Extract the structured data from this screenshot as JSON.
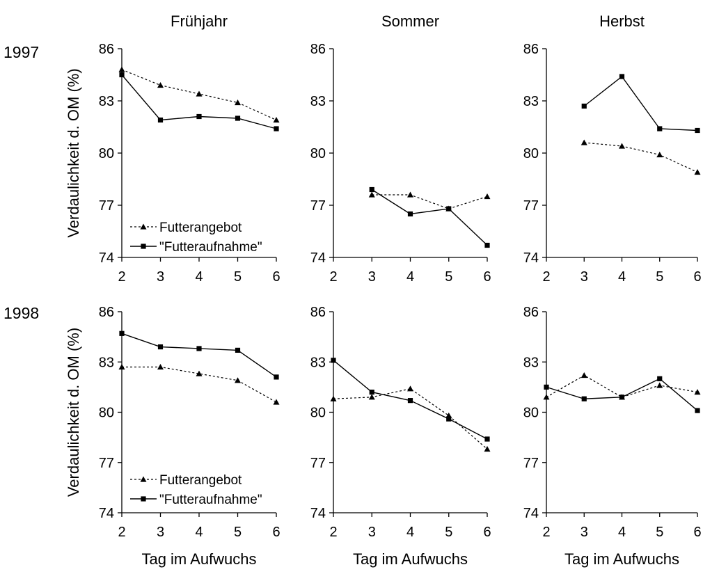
{
  "chart_data": {
    "type": "line",
    "column_titles": [
      "Frühjahr",
      "Sommer",
      "Herbst"
    ],
    "row_labels": [
      "1997",
      "1998"
    ],
    "ylabel": "Verdaulichkeit d. OM (%)",
    "xlabel": "Tag im Aufwuchs",
    "ylim": [
      74,
      86
    ],
    "y_ticks": [
      74,
      77,
      80,
      83,
      86
    ],
    "x_ticks": [
      2,
      3,
      4,
      5,
      6
    ],
    "grid": false,
    "legend": {
      "placement": "lower-left",
      "panels": [
        "1997-Frühjahr",
        "1998-Frühjahr"
      ],
      "entries": [
        "Futterangebot",
        "\"Futteraufnahme\""
      ]
    },
    "series_names": [
      "Futterangebot",
      "\"Futteraufnahme\""
    ],
    "panels": [
      {
        "row": "1997",
        "season": "Frühjahr",
        "series": [
          {
            "name": "Futterangebot",
            "style": "dashed-triangle",
            "x": [
              2,
              3,
              4,
              5,
              6
            ],
            "y": [
              84.8,
              83.9,
              83.4,
              82.9,
              81.9
            ]
          },
          {
            "name": "\"Futteraufnahme\"",
            "style": "solid-square",
            "x": [
              2,
              3,
              4,
              5,
              6
            ],
            "y": [
              84.5,
              81.9,
              82.1,
              82.0,
              81.4
            ]
          }
        ]
      },
      {
        "row": "1997",
        "season": "Sommer",
        "series": [
          {
            "name": "Futterangebot",
            "style": "dashed-triangle",
            "x": [
              3,
              4,
              5,
              6
            ],
            "y": [
              77.6,
              77.6,
              76.8,
              77.5
            ]
          },
          {
            "name": "\"Futteraufnahme\"",
            "style": "solid-square",
            "x": [
              3,
              4,
              5,
              6
            ],
            "y": [
              77.9,
              76.5,
              76.8,
              74.7
            ]
          }
        ]
      },
      {
        "row": "1997",
        "season": "Herbst",
        "series": [
          {
            "name": "Futterangebot",
            "style": "dashed-triangle",
            "x": [
              3,
              4,
              5,
              6
            ],
            "y": [
              80.6,
              80.4,
              79.9,
              78.9
            ]
          },
          {
            "name": "\"Futteraufnahme\"",
            "style": "solid-square",
            "x": [
              3,
              4,
              5,
              6
            ],
            "y": [
              82.7,
              84.4,
              81.4,
              81.3
            ]
          }
        ]
      },
      {
        "row": "1998",
        "season": "Frühjahr",
        "series": [
          {
            "name": "Futterangebot",
            "style": "dashed-triangle",
            "x": [
              2,
              3,
              4,
              5,
              6
            ],
            "y": [
              82.7,
              82.7,
              82.3,
              81.9,
              80.6
            ]
          },
          {
            "name": "\"Futteraufnahme\"",
            "style": "solid-square",
            "x": [
              2,
              3,
              4,
              5,
              6
            ],
            "y": [
              84.7,
              83.9,
              83.8,
              83.7,
              82.1
            ]
          }
        ]
      },
      {
        "row": "1998",
        "season": "Sommer",
        "series": [
          {
            "name": "Futterangebot",
            "style": "dashed-triangle",
            "x": [
              2,
              3,
              4,
              5,
              6
            ],
            "y": [
              80.8,
              80.9,
              81.4,
              79.8,
              77.8
            ]
          },
          {
            "name": "\"Futteraufnahme\"",
            "style": "solid-square",
            "x": [
              2,
              3,
              4,
              5,
              6
            ],
            "y": [
              83.1,
              81.2,
              80.7,
              79.6,
              78.4
            ]
          }
        ]
      },
      {
        "row": "1998",
        "season": "Herbst",
        "series": [
          {
            "name": "Futterangebot",
            "style": "dashed-triangle",
            "x": [
              2,
              3,
              4,
              5,
              6
            ],
            "y": [
              80.9,
              82.2,
              80.9,
              81.6,
              81.2
            ]
          },
          {
            "name": "\"Futteraufnahme\"",
            "style": "solid-square",
            "x": [
              2,
              3,
              4,
              5,
              6
            ],
            "y": [
              81.5,
              80.8,
              80.9,
              82.0,
              80.1
            ]
          }
        ]
      }
    ]
  }
}
